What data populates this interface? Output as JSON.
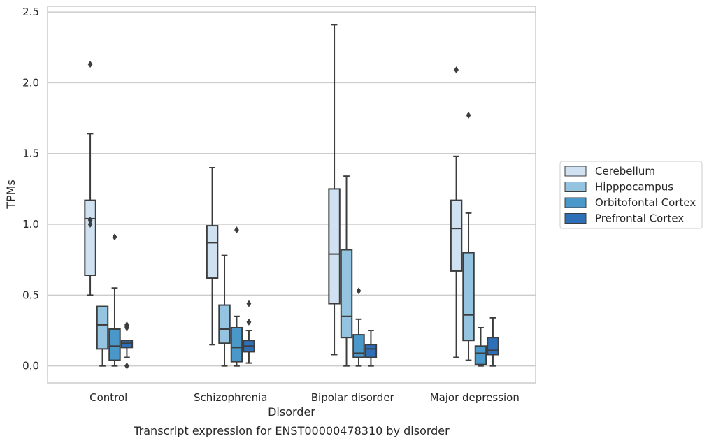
{
  "chart_data": {
    "type": "box",
    "title": "Transcript expression for ENST00000478310 by disorder",
    "xlabel": "Disorder",
    "ylabel": "TPMs",
    "ylim": [
      -0.12,
      2.54
    ],
    "yticks": [
      "0.0",
      "0.5",
      "1.0",
      "1.5",
      "2.0",
      "2.5"
    ],
    "grid": "horizontal",
    "legend_position": "right",
    "categories": [
      "Control",
      "Schizophrenia",
      "Bipolar disorder",
      "Major depression"
    ],
    "series": [
      {
        "name": "Cerebellum",
        "color": "#d0e1f2",
        "boxes": [
          {
            "whislo": 0.5,
            "q1": 0.64,
            "med": 1.04,
            "q3": 1.17,
            "whishi": 1.64,
            "fliers": [
              2.13,
              1.03,
              1.0
            ]
          },
          {
            "whislo": 0.15,
            "q1": 0.62,
            "med": 0.87,
            "q3": 0.99,
            "whishi": 1.4,
            "fliers": []
          },
          {
            "whislo": 0.08,
            "q1": 0.44,
            "med": 0.79,
            "q3": 1.25,
            "whishi": 2.41,
            "fliers": []
          },
          {
            "whislo": 0.06,
            "q1": 0.67,
            "med": 0.97,
            "q3": 1.17,
            "whishi": 1.48,
            "fliers": [
              2.09
            ]
          }
        ]
      },
      {
        "name": "Hipppocampus",
        "color": "#94c4df",
        "boxes": [
          {
            "whislo": 0.0,
            "q1": 0.12,
            "med": 0.29,
            "q3": 0.42,
            "whishi": 0.42,
            "fliers": []
          },
          {
            "whislo": 0.0,
            "q1": 0.16,
            "med": 0.26,
            "q3": 0.43,
            "whishi": 0.78,
            "fliers": []
          },
          {
            "whislo": 0.0,
            "q1": 0.2,
            "med": 0.35,
            "q3": 0.82,
            "whishi": 1.34,
            "fliers": []
          },
          {
            "whislo": 0.04,
            "q1": 0.18,
            "med": 0.36,
            "q3": 0.8,
            "whishi": 1.08,
            "fliers": [
              1.77
            ]
          }
        ]
      },
      {
        "name": "Orbitofontal Cortex",
        "color": "#4a98c9",
        "boxes": [
          {
            "whislo": 0.0,
            "q1": 0.04,
            "med": 0.14,
            "q3": 0.26,
            "whishi": 0.55,
            "fliers": [
              0.91
            ]
          },
          {
            "whislo": 0.0,
            "q1": 0.03,
            "med": 0.13,
            "q3": 0.27,
            "whishi": 0.35,
            "fliers": [
              0.96
            ]
          },
          {
            "whislo": 0.0,
            "q1": 0.06,
            "med": 0.09,
            "q3": 0.22,
            "whishi": 0.33,
            "fliers": [
              0.53
            ]
          },
          {
            "whislo": 0.0,
            "q1": 0.01,
            "med": 0.09,
            "q3": 0.14,
            "whishi": 0.27,
            "fliers": []
          }
        ]
      },
      {
        "name": "Prefrontal Cortex",
        "color": "#2e6fb7",
        "boxes": [
          {
            "whislo": 0.06,
            "q1": 0.13,
            "med": 0.16,
            "q3": 0.18,
            "whishi": 0.18,
            "fliers": [
              0.29,
              0.28,
              0.27,
              0.0
            ]
          },
          {
            "whislo": 0.02,
            "q1": 0.1,
            "med": 0.14,
            "q3": 0.18,
            "whishi": 0.25,
            "fliers": [
              0.44,
              0.31
            ]
          },
          {
            "whislo": 0.0,
            "q1": 0.06,
            "med": 0.12,
            "q3": 0.15,
            "whishi": 0.25,
            "fliers": []
          },
          {
            "whislo": 0.0,
            "q1": 0.08,
            "med": 0.11,
            "q3": 0.2,
            "whishi": 0.34,
            "fliers": []
          }
        ]
      }
    ]
  }
}
